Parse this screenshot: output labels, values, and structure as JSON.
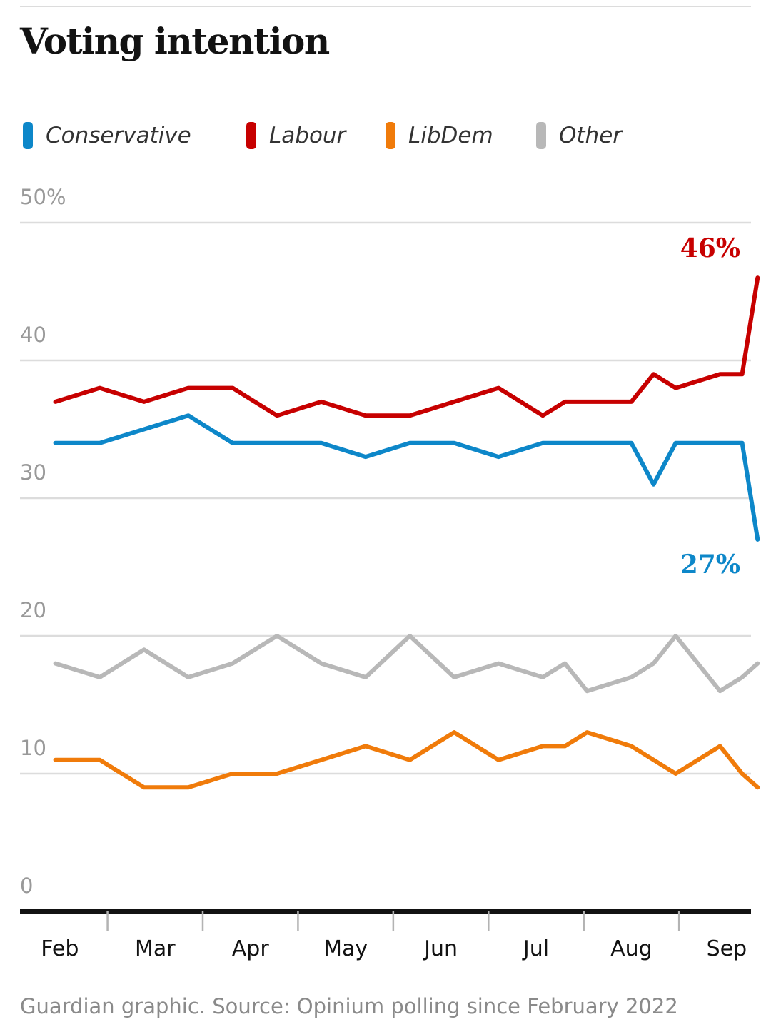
{
  "title": "Voting intention",
  "source": "Guardian graphic. Source: Opinium polling since February 2022",
  "legend": [
    {
      "label": "Conservative",
      "color": "#0d87c9"
    },
    {
      "label": "Labour",
      "color": "#c70000"
    },
    {
      "label": "LibDem",
      "color": "#f07b0a"
    },
    {
      "label": "Other",
      "color": "#b8b8b8"
    }
  ],
  "chart_data": {
    "type": "line",
    "title": "Voting intention",
    "xlabel": "",
    "ylabel": "",
    "ylim": [
      0,
      50
    ],
    "yticks": [
      0,
      10,
      20,
      30,
      40,
      50
    ],
    "ytick_labels": [
      "0",
      "10",
      "20",
      "30",
      "40",
      "50%"
    ],
    "xlim": [
      0,
      16.5
    ],
    "month_ticks": [
      0.9,
      3.05,
      5.2,
      7.35,
      9.5,
      11.65,
      13.8,
      15.95
    ],
    "month_labels": [
      "Feb",
      "Mar",
      "Apr",
      "May",
      "Jun",
      "Jul",
      "Aug",
      "Sep"
    ],
    "x": [
      0.8,
      1.8,
      2.8,
      3.8,
      4.8,
      5.8,
      6.8,
      7.8,
      8.8,
      9.8,
      10.8,
      11.8,
      12.3,
      12.8,
      13.8,
      14.3,
      14.8,
      15.8,
      16.3,
      16.65
    ],
    "series": [
      {
        "name": "Labour",
        "color": "#c70000",
        "values": [
          37,
          38,
          37,
          38,
          38,
          36,
          37,
          36,
          36,
          37,
          38,
          36,
          37,
          37,
          37,
          39,
          38,
          39,
          39,
          46
        ],
        "end_label": "46%"
      },
      {
        "name": "Conservative",
        "color": "#0d87c9",
        "values": [
          34,
          34,
          35,
          36,
          34,
          34,
          34,
          33,
          34,
          34,
          33,
          34,
          34,
          34,
          34,
          31,
          34,
          34,
          34,
          27
        ],
        "end_label": "27%"
      },
      {
        "name": "Other",
        "color": "#b8b8b8",
        "values": [
          18,
          17,
          19,
          17,
          18,
          20,
          18,
          17,
          20,
          17,
          18,
          17,
          18,
          16,
          17,
          18,
          20,
          16,
          17,
          18
        ]
      },
      {
        "name": "LibDem",
        "color": "#f07b0a",
        "values": [
          11,
          11,
          9,
          9,
          10,
          10,
          11,
          12,
          11,
          13,
          11,
          12,
          12,
          13,
          12,
          11,
          10,
          12,
          10,
          9
        ]
      }
    ]
  }
}
